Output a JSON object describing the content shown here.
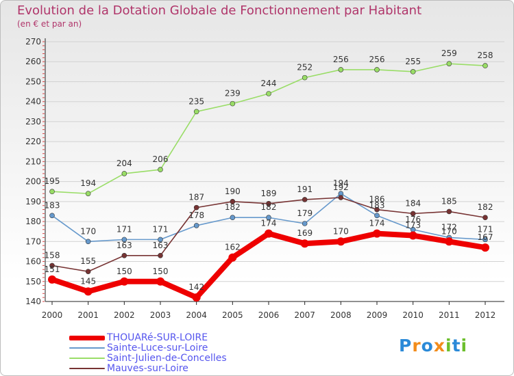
{
  "chart_data": {
    "type": "line",
    "title": "Evolution de la Dotation Globale de Fonctionnement par Habitant",
    "subtitle": "(en € et par an)",
    "xlabel": "",
    "ylabel": "",
    "ylim": [
      140,
      270
    ],
    "yticks": [
      "140",
      "150",
      "160",
      "170",
      "180",
      "190",
      "200",
      "210",
      "220",
      "230",
      "240",
      "250",
      "260",
      "270"
    ],
    "categories": [
      "2000",
      "2001",
      "2002",
      "2003",
      "2004",
      "2005",
      "2006",
      "2007",
      "2008",
      "2009",
      "2010",
      "2011",
      "2012"
    ],
    "series": [
      {
        "name": "Saint-Julien-de-Concelles",
        "color": "#99dd66",
        "values": [
          195,
          194,
          204,
          206,
          235,
          239,
          244,
          252,
          256,
          256,
          255,
          259,
          258
        ]
      },
      {
        "name": "Sainte-Luce-sur-Loire",
        "color": "#6699cc",
        "values": [
          183,
          170,
          171,
          171,
          178,
          182,
          182,
          179,
          194,
          183,
          176,
          172,
          171
        ]
      },
      {
        "name": "Mauves-sur-Loire",
        "color": "#773333",
        "values": [
          158,
          155,
          163,
          163,
          187,
          190,
          189,
          191,
          192,
          186,
          184,
          185,
          182
        ]
      },
      {
        "name": "THOUARé-SUR-LOIRE",
        "color": "#ee0000",
        "values": [
          151,
          145,
          150,
          150,
          142,
          162,
          174,
          169,
          170,
          174,
          173,
          170,
          167
        ]
      }
    ],
    "legend": [
      "THOUARé-SUR-LOIRE",
      "Sainte-Luce-sur-Loire",
      "Saint-Julien-de-Concelles",
      "Mauves-sur-Loire"
    ]
  },
  "logo": {
    "text": "Proxiti",
    "letter_colors": [
      "#2b8ad8",
      "#f28c1b",
      "#2b8ad8",
      "#f28c1b",
      "#6cbf2c",
      "#2b8ad8",
      "#6cbf2c"
    ]
  }
}
